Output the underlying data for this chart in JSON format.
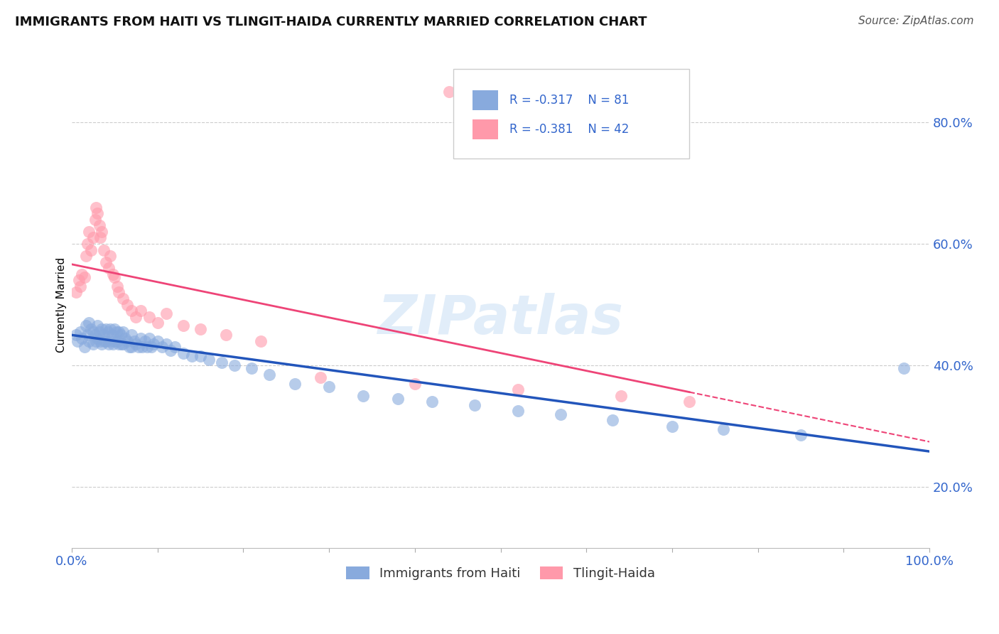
{
  "title": "IMMIGRANTS FROM HAITI VS TLINGIT-HAIDA CURRENTLY MARRIED CORRELATION CHART",
  "source": "Source: ZipAtlas.com",
  "ylabel": "Currently Married",
  "legend_label1": "Immigrants from Haiti",
  "legend_label2": "Tlingit-Haida",
  "r1": -0.317,
  "n1": 81,
  "r2": -0.381,
  "n2": 42,
  "color1": "#88AADD",
  "color2": "#FF99AA",
  "color1_line": "#2255BB",
  "color2_line": "#EE4477",
  "watermark": "ZIPatlas",
  "yticks": [
    0.2,
    0.4,
    0.6,
    0.8
  ],
  "xlim": [
    0.0,
    1.0
  ],
  "ylim": [
    0.1,
    0.9
  ],
  "haiti_x": [
    0.005,
    0.007,
    0.01,
    0.012,
    0.015,
    0.017,
    0.018,
    0.02,
    0.02,
    0.022,
    0.025,
    0.025,
    0.027,
    0.028,
    0.03,
    0.03,
    0.032,
    0.033,
    0.035,
    0.035,
    0.037,
    0.038,
    0.04,
    0.04,
    0.042,
    0.043,
    0.045,
    0.045,
    0.047,
    0.048,
    0.05,
    0.05,
    0.052,
    0.053,
    0.055,
    0.055,
    0.057,
    0.058,
    0.06,
    0.06,
    0.062,
    0.065,
    0.067,
    0.07,
    0.07,
    0.073,
    0.075,
    0.078,
    0.08,
    0.082,
    0.085,
    0.088,
    0.09,
    0.093,
    0.095,
    0.1,
    0.105,
    0.11,
    0.115,
    0.12,
    0.13,
    0.14,
    0.15,
    0.16,
    0.175,
    0.19,
    0.21,
    0.23,
    0.26,
    0.3,
    0.34,
    0.38,
    0.42,
    0.47,
    0.52,
    0.57,
    0.63,
    0.7,
    0.76,
    0.85,
    0.97
  ],
  "haiti_y": [
    0.45,
    0.44,
    0.455,
    0.445,
    0.43,
    0.465,
    0.45,
    0.47,
    0.44,
    0.46,
    0.455,
    0.435,
    0.45,
    0.44,
    0.465,
    0.445,
    0.455,
    0.44,
    0.46,
    0.435,
    0.45,
    0.44,
    0.46,
    0.44,
    0.455,
    0.435,
    0.46,
    0.44,
    0.45,
    0.435,
    0.46,
    0.44,
    0.455,
    0.44,
    0.455,
    0.435,
    0.45,
    0.435,
    0.455,
    0.435,
    0.445,
    0.44,
    0.43,
    0.45,
    0.43,
    0.44,
    0.435,
    0.43,
    0.445,
    0.43,
    0.44,
    0.43,
    0.445,
    0.43,
    0.435,
    0.44,
    0.43,
    0.435,
    0.425,
    0.43,
    0.42,
    0.415,
    0.415,
    0.41,
    0.405,
    0.4,
    0.395,
    0.385,
    0.37,
    0.365,
    0.35,
    0.345,
    0.34,
    0.335,
    0.325,
    0.32,
    0.31,
    0.3,
    0.295,
    0.285,
    0.395
  ],
  "tlingit_x": [
    0.005,
    0.008,
    0.01,
    0.012,
    0.015,
    0.017,
    0.018,
    0.02,
    0.022,
    0.025,
    0.027,
    0.028,
    0.03,
    0.032,
    0.033,
    0.035,
    0.037,
    0.04,
    0.043,
    0.045,
    0.048,
    0.05,
    0.053,
    0.055,
    0.06,
    0.065,
    0.07,
    0.075,
    0.08,
    0.09,
    0.1,
    0.11,
    0.13,
    0.15,
    0.18,
    0.22,
    0.29,
    0.4,
    0.52,
    0.64,
    0.72,
    0.44
  ],
  "tlingit_y": [
    0.52,
    0.54,
    0.53,
    0.55,
    0.545,
    0.58,
    0.6,
    0.62,
    0.59,
    0.61,
    0.64,
    0.66,
    0.65,
    0.63,
    0.61,
    0.62,
    0.59,
    0.57,
    0.56,
    0.58,
    0.55,
    0.545,
    0.53,
    0.52,
    0.51,
    0.5,
    0.49,
    0.48,
    0.49,
    0.48,
    0.47,
    0.485,
    0.465,
    0.46,
    0.45,
    0.44,
    0.38,
    0.37,
    0.36,
    0.35,
    0.34,
    0.85
  ]
}
